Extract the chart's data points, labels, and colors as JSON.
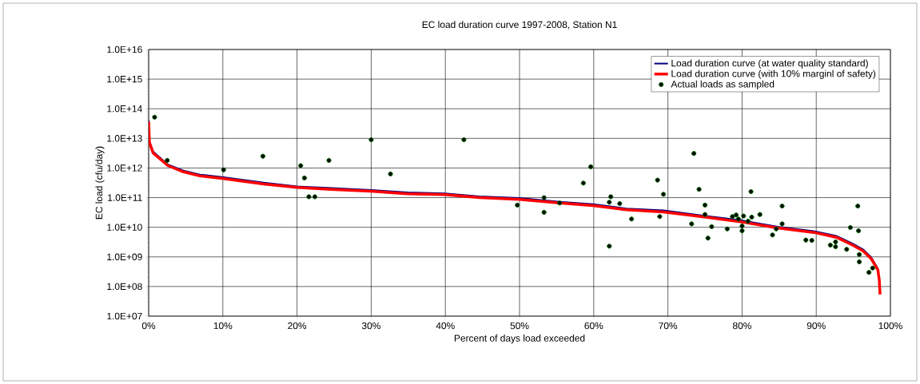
{
  "chart_data": {
    "type": "line",
    "title": "EC load duration curve 1997-2008, Station N1",
    "xlabel": "Percent of days load exceeded",
    "ylabel": "EC load (cfu/day)",
    "xlim": [
      0,
      100
    ],
    "xticks": [
      {
        "value": 0,
        "label": "0%"
      },
      {
        "value": 10,
        "label": "10%"
      },
      {
        "value": 20,
        "label": "20%"
      },
      {
        "value": 30,
        "label": "30%"
      },
      {
        "value": 40,
        "label": "40%"
      },
      {
        "value": 50,
        "label": "50%"
      },
      {
        "value": 60,
        "label": "60%"
      },
      {
        "value": 70,
        "label": "70%"
      },
      {
        "value": 80,
        "label": "80%"
      },
      {
        "value": 90,
        "label": "90%"
      },
      {
        "value": 100,
        "label": "100%"
      }
    ],
    "ylim": [
      10000000.0,
      1e+16
    ],
    "yticks": [
      {
        "value": 10000000.0,
        "label": "1.0E+07"
      },
      {
        "value": 100000000.0,
        "label": "1.0E+08"
      },
      {
        "value": 1000000000.0,
        "label": "1.0E+09"
      },
      {
        "value": 10000000000.0,
        "label": "1.0E+10"
      },
      {
        "value": 100000000000.0,
        "label": "1.0E+11"
      },
      {
        "value": 1000000000000.0,
        "label": "1.0E+12"
      },
      {
        "value": 10000000000000.0,
        "label": "1.0E+13"
      },
      {
        "value": 100000000000000.0,
        "label": "1.0E+14"
      },
      {
        "value": 1000000000000000.0,
        "label": "1.0E+15"
      },
      {
        "value": 1e+16,
        "label": "1.0E+16"
      }
    ],
    "log": "y",
    "grid": true,
    "legend": "top right",
    "series": [
      {
        "name": "Load duration curve (at water quality standard)",
        "color": "#000080",
        "x": [
          0,
          0.1,
          0.6,
          2.6,
          4.7,
          6.9,
          10.1,
          15.5,
          20,
          24.6,
          30,
          34.9,
          39.9,
          44.6,
          50,
          55.4,
          59.9,
          64.4,
          69.4,
          75.1,
          80,
          84.8,
          89.8,
          92.7,
          94.9,
          96.3,
          97.4,
          98.3
        ],
        "values": [
          41000000000000.0,
          8000000000000.0,
          3600000000000.0,
          1300000000000.0,
          820000000000.0,
          600000000000.0,
          490000000000.0,
          320000000000.0,
          240000000000.0,
          210000000000.0,
          180000000000.0,
          150000000000.0,
          140000000000.0,
          110000000000.0,
          97000000000.0,
          73000000000.0,
          60000000000.0,
          43000000000.0,
          37000000000.0,
          24000000000.0,
          17000000000.0,
          10500000000.0,
          7300000000.0,
          5100000000.0,
          2800000000.0,
          1800000000.0,
          970000000.0,
          410000000.0
        ]
      },
      {
        "name": "Load duration curve (with 10% marginl of safety)",
        "color": "#ff0000",
        "x": [
          0,
          0.1,
          0.6,
          2.6,
          4.7,
          6.9,
          10.1,
          15.5,
          20,
          24.6,
          30,
          34.9,
          39.9,
          44.6,
          50,
          55.4,
          59.9,
          64.4,
          69.4,
          75.1,
          80,
          84.8,
          89.8,
          92.7,
          94.9,
          96.3,
          97.4,
          98.3,
          98.5,
          98.6
        ],
        "values": [
          37000000000000.0,
          7200000000000.0,
          3200000000000.0,
          1200000000000.0,
          740000000000.0,
          540000000000.0,
          440000000000.0,
          290000000000.0,
          220000000000.0,
          190000000000.0,
          165000000000.0,
          135000000000.0,
          127000000000.0,
          100000000000.0,
          87000000000.0,
          66000000000.0,
          54000000000.0,
          39000000000.0,
          33000000000.0,
          22000000000.0,
          15000000000.0,
          9500000000.0,
          6600000000.0,
          4600000000.0,
          2500000000.0,
          1600000000.0,
          870000000.0,
          370000000.0,
          160000000.0,
          54000000.0
        ]
      },
      {
        "name": "Actual loads as sampled",
        "type": "scatter",
        "marker": "circle",
        "color": "#007000",
        "x": [
          0.8,
          2.5,
          10.1,
          15.4,
          20.5,
          21.0,
          21.6,
          22.4,
          24.3,
          30.0,
          32.6,
          42.5,
          49.7,
          53.3,
          53.3,
          55.4,
          58.6,
          59.6,
          62.1,
          62.3,
          62.1,
          63.5,
          65.1,
          68.6,
          68.9,
          69.4,
          73.5,
          74.2,
          73.2,
          75.0,
          75.0,
          75.9,
          75.4,
          78.0,
          78.7,
          79.2,
          79.5,
          80.2,
          80.0,
          80.0,
          80.8,
          81.3,
          81.2,
          82.4,
          84.1,
          84.6,
          85.4,
          85.4,
          88.6,
          89.4,
          91.9,
          92.6,
          92.6,
          94.1,
          94.6,
          95.6,
          95.7,
          95.8,
          95.8,
          97.6,
          97.1
        ],
        "values": [
          52000000000000.0,
          1800000000000.0,
          870000000000.0,
          2500000000000.0,
          1200000000000.0,
          460000000000.0,
          107000000000.0,
          107000000000.0,
          1800000000000.0,
          9000000000000.0,
          630000000000.0,
          9000000000000.0,
          56000000000.0,
          100000000000.0,
          32000000000.0,
          66000000000.0,
          310000000000.0,
          1100000000000.0,
          70000000000.0,
          107000000000.0,
          2300000000.0,
          63000000000.0,
          19000000000.0,
          390000000000.0,
          23000000000.0,
          130000000000.0,
          3100000000000.0,
          190000000000.0,
          13000000000.0,
          56000000000.0,
          27000000000.0,
          10500000000.0,
          4300000000.0,
          8800000000.0,
          23000000000.0,
          26000000000.0,
          19000000000.0,
          24000000000.0,
          11000000000.0,
          7600000000.0,
          16000000000.0,
          22000000000.0,
          160000000000.0,
          27000000000.0,
          5500000000.0,
          8800000000.0,
          13000000000.0,
          52000000000.0,
          3700000000.0,
          3600000000.0,
          2500000000.0,
          3200000000.0,
          2200000000.0,
          1800000000.0,
          9800000000.0,
          52000000000.0,
          7600000000.0,
          1200000000.0,
          680000000.0,
          420000000.0,
          300000000.0
        ]
      }
    ]
  }
}
